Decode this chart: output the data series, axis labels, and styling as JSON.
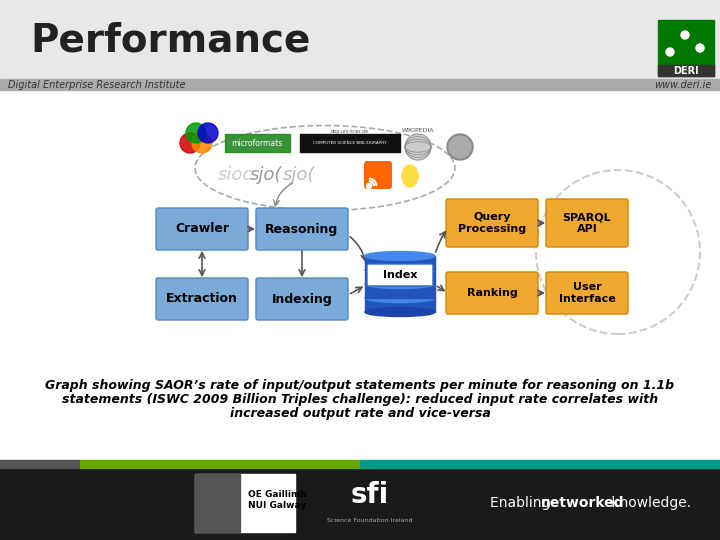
{
  "title": "Performance",
  "title_fontsize": 28,
  "title_color": "#222222",
  "header_bg": "#e8e8e8",
  "subheader_bg": "#aaaaaa",
  "subtitle_left": "Digital Enterprise Research Institute",
  "subtitle_right": "www.deri.ie",
  "subtitle_fontsize": 7,
  "caption_line1": "Graph showing SAOR’s rate of input/output statements per minute for reasoning on 1.1b",
  "caption_line2": "statements (ISWC 2009 Billion Triples challenge): reduced input rate correlates with",
  "caption_line3": "increased output rate and vice-versa",
  "caption_fontsize": 9,
  "box_blue": "#7aaad8",
  "box_orange": "#f0a830",
  "index_blue": "#2255bb",
  "index_blue_top": "#4488ee",
  "footer_black": "#1a1a1a",
  "footer_gray": "#555555",
  "footer_green": "#66aa00",
  "footer_teal": "#009988",
  "main_bg": "#f0f0f0",
  "white": "#ffffff",
  "deri_green": "#007700",
  "deri_bar": "#333333"
}
